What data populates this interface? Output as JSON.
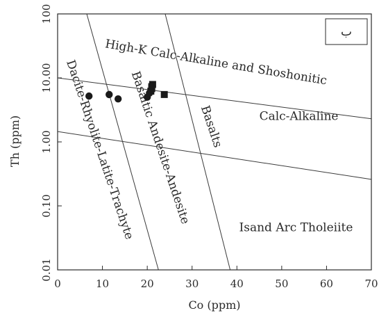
{
  "chart_data": {
    "type": "scatter",
    "title": "",
    "panel_label": "ب",
    "xlabel": "Co (ppm)",
    "ylabel": "Th (ppm)",
    "xlim": [
      0,
      70
    ],
    "ylim": [
      0.01,
      100
    ],
    "y_scale": "log",
    "grid": false,
    "legend": "none",
    "x_ticks": [
      0,
      10,
      20,
      30,
      40,
      50,
      60,
      70
    ],
    "x_tick_labels": [
      "0",
      "10",
      "20",
      "30",
      "40",
      "50",
      "60",
      "70"
    ],
    "y_ticks": [
      0.01,
      0.1,
      1,
      10,
      100
    ],
    "y_tick_labels": [
      "0.01",
      "0.10",
      "1.00",
      "10.00",
      "100"
    ],
    "boundaries": [
      {
        "name": "upper-horizontal",
        "x": [
          0,
          70
        ],
        "y": [
          10,
          2.3
        ]
      },
      {
        "name": "lower-horizontal",
        "x": [
          0,
          70
        ],
        "y": [
          1.45,
          0.26
        ]
      },
      {
        "name": "dacite-basaltic-andesite",
        "x": [
          6.5,
          22.5
        ],
        "y": [
          100,
          0.01
        ]
      },
      {
        "name": "andesite-basalt",
        "x": [
          24,
          38.5
        ],
        "y": [
          100,
          0.01
        ]
      }
    ],
    "region_labels": [
      {
        "text": "High-K Calc-Alkaline and Shoshonitic",
        "x": 10.5,
        "y": 30,
        "angle": 9.5
      },
      {
        "text": "Calc-Alkaline",
        "x": 45,
        "y": 2.2,
        "angle": 0
      },
      {
        "text": "Isand Arc Tholeiite",
        "x": 40.5,
        "y": 0.04,
        "angle": 0
      },
      {
        "text": "Dacite-Rhyolite-Latite-Trachyte",
        "x": 2,
        "y": 18,
        "angle": 71.5
      },
      {
        "text": "Basaltic Andesite-Andesite",
        "x": 16.5,
        "y": 12,
        "angle": 71.5
      },
      {
        "text": "Basalts",
        "x": 32,
        "y": 3.5,
        "angle": 71.5
      }
    ],
    "series": [
      {
        "marker": "circle",
        "color": "#1a1a1a",
        "x": [
          7,
          11.5,
          13.5,
          20,
          20.5
        ],
        "y": [
          5.2,
          5.5,
          4.7,
          5.0,
          5.8
        ]
      },
      {
        "marker": "square",
        "color": "#1a1a1a",
        "x": [
          20.8,
          21,
          21,
          21.2,
          23.8
        ],
        "y": [
          6.2,
          6.8,
          7.3,
          7.9,
          5.5
        ]
      }
    ]
  }
}
